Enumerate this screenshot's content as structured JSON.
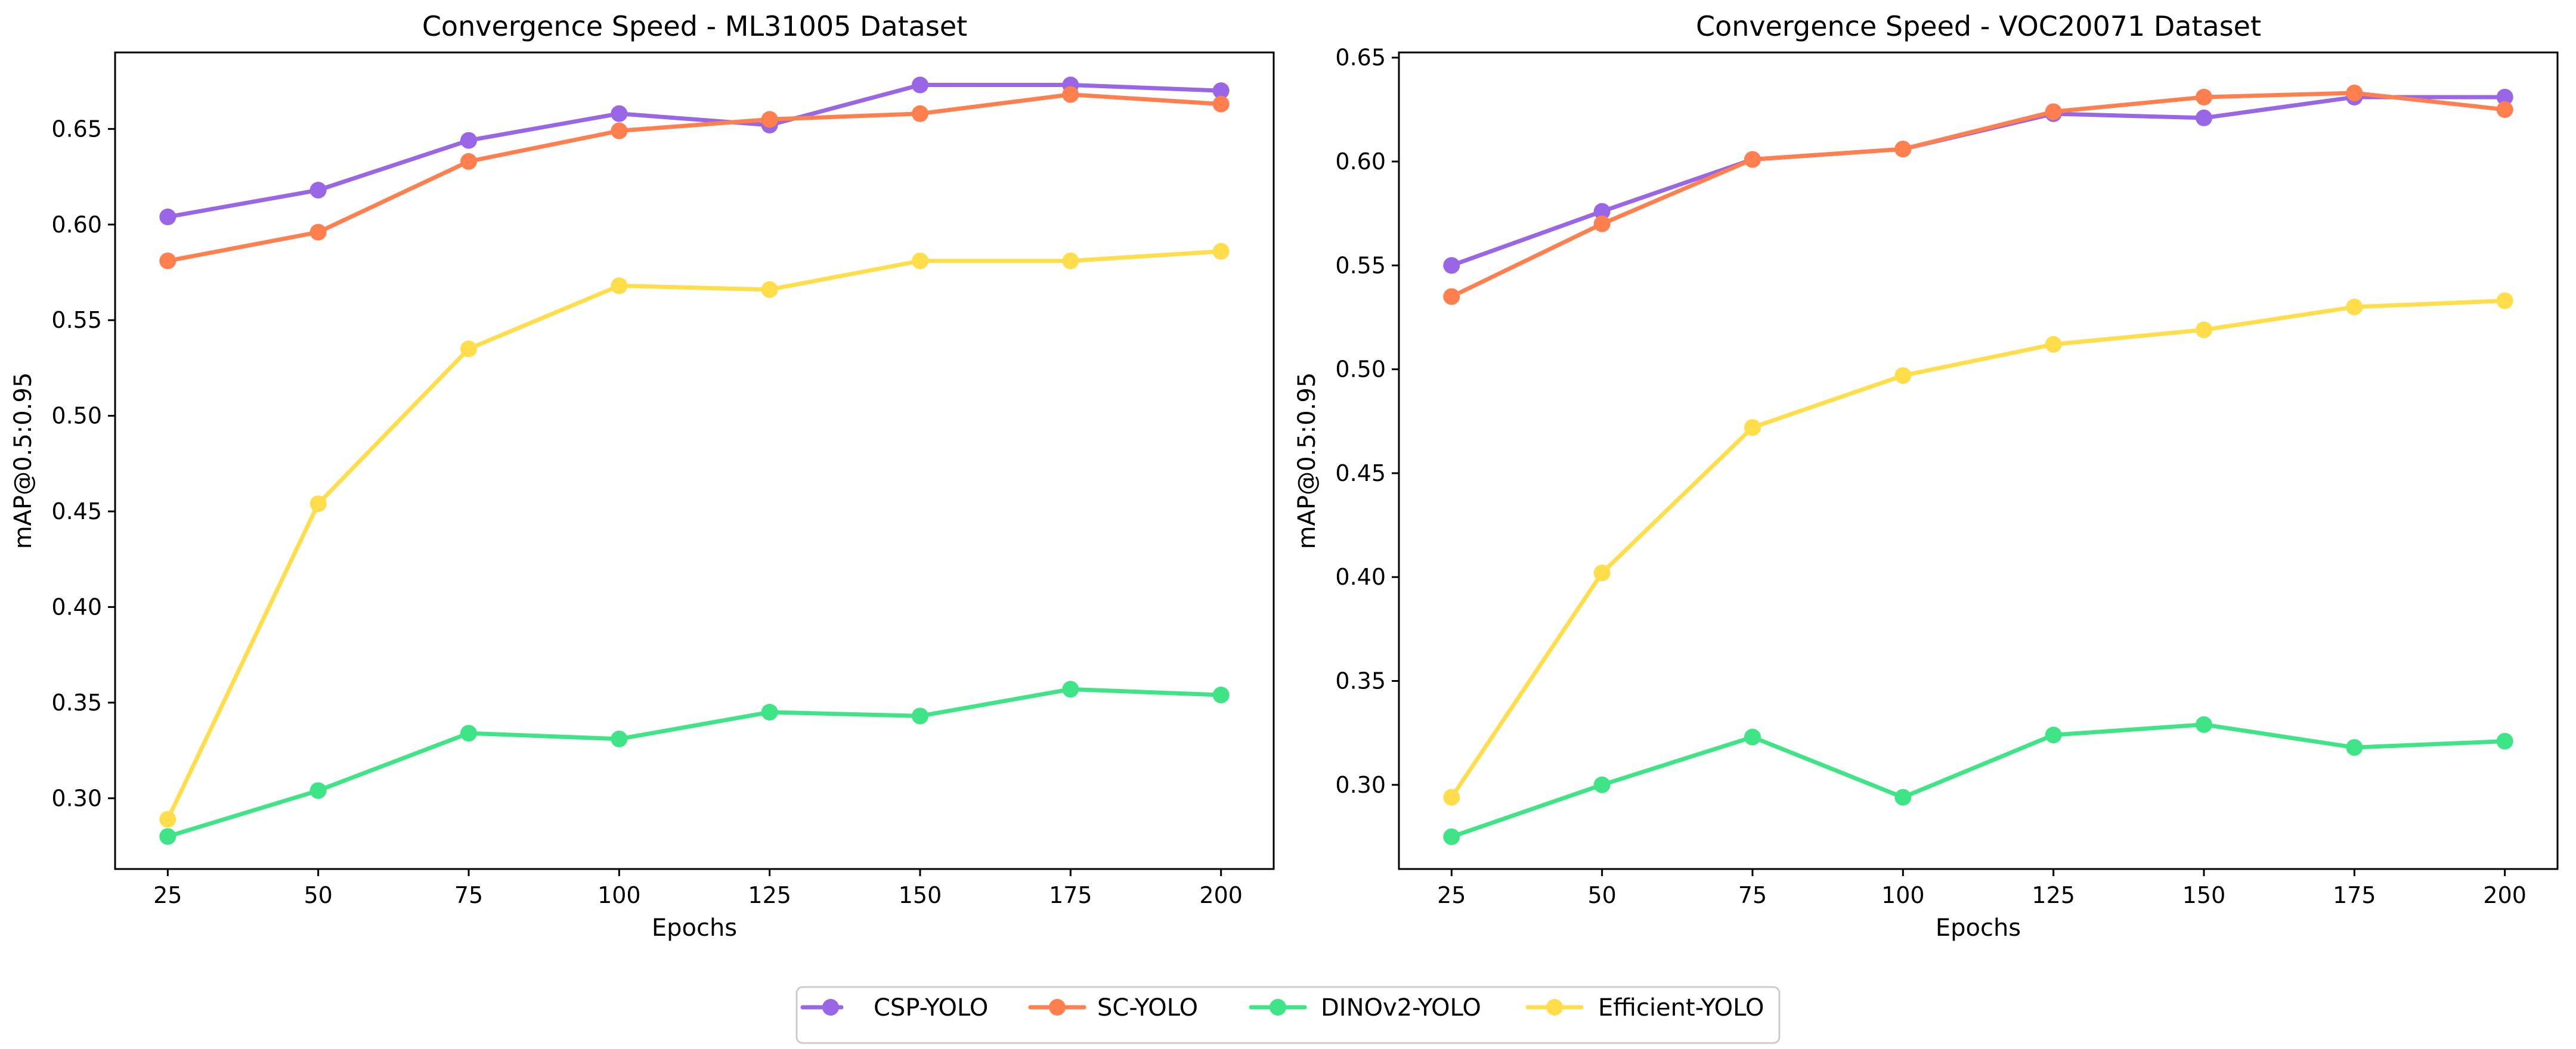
{
  "figure": {
    "legend_entries": [
      "CSP-YOLO",
      "SC-YOLO",
      "DINOv2-YOLO",
      "Efficient-YOLO"
    ]
  },
  "chart_data": [
    {
      "type": "line",
      "title": "Convergence Speed - ML31005 Dataset",
      "xlabel": "Epochs",
      "ylabel": "mAP@0.5:0.95",
      "x": [
        25,
        50,
        75,
        100,
        125,
        150,
        175,
        200
      ],
      "xlim": [
        16.25,
        208.75
      ],
      "ylim": [
        0.263,
        0.69
      ],
      "xticks": [
        "25",
        "50",
        "75",
        "100",
        "125",
        "150",
        "175",
        "200"
      ],
      "xtick_values": [
        25,
        50,
        75,
        100,
        125,
        150,
        175,
        200
      ],
      "yticks": [
        "0.30",
        "0.35",
        "0.40",
        "0.45",
        "0.50",
        "0.55",
        "0.60",
        "0.65"
      ],
      "ytick_values": [
        0.3,
        0.35,
        0.4,
        0.45,
        0.5,
        0.55,
        0.6,
        0.65
      ],
      "grid": false,
      "series": [
        {
          "name": "CSP-YOLO",
          "color": "#9966e6",
          "values": [
            0.604,
            0.618,
            0.644,
            0.658,
            0.652,
            0.673,
            0.673,
            0.67
          ]
        },
        {
          "name": "SC-YOLO",
          "color": "#ff7f4f",
          "values": [
            0.581,
            0.596,
            0.633,
            0.649,
            0.655,
            0.658,
            0.668,
            0.663
          ]
        },
        {
          "name": "DINOv2-YOLO",
          "color": "#3ee486",
          "values": [
            0.28,
            0.304,
            0.334,
            0.331,
            0.345,
            0.343,
            0.357,
            0.354
          ]
        },
        {
          "name": "Efficient-YOLO",
          "color": "#ffdd4b",
          "values": [
            0.289,
            0.454,
            0.535,
            0.568,
            0.566,
            0.581,
            0.581,
            0.586
          ]
        }
      ]
    },
    {
      "type": "line",
      "title": "Convergence Speed - VOC20071 Dataset",
      "xlabel": "Epochs",
      "ylabel": "mAP@0.5:0.95",
      "x": [
        25,
        50,
        75,
        100,
        125,
        150,
        175,
        200
      ],
      "xlim": [
        16.25,
        208.75
      ],
      "ylim": [
        0.2595,
        0.6525
      ],
      "xticks": [
        "25",
        "50",
        "75",
        "100",
        "125",
        "150",
        "175",
        "200"
      ],
      "xtick_values": [
        25,
        50,
        75,
        100,
        125,
        150,
        175,
        200
      ],
      "yticks": [
        "0.30",
        "0.35",
        "0.40",
        "0.45",
        "0.50",
        "0.55",
        "0.60",
        "0.65"
      ],
      "ytick_values": [
        0.3,
        0.35,
        0.4,
        0.45,
        0.5,
        0.55,
        0.6,
        0.65
      ],
      "grid": false,
      "series": [
        {
          "name": "CSP-YOLO",
          "color": "#9966e6",
          "values": [
            0.55,
            0.576,
            0.601,
            0.606,
            0.623,
            0.621,
            0.631,
            0.631
          ]
        },
        {
          "name": "SC-YOLO",
          "color": "#ff7f4f",
          "values": [
            0.535,
            0.57,
            0.601,
            0.606,
            0.624,
            0.631,
            0.633,
            0.625
          ]
        },
        {
          "name": "DINOv2-YOLO",
          "color": "#3ee486",
          "values": [
            0.275,
            0.3,
            0.323,
            0.294,
            0.324,
            0.329,
            0.318,
            0.321
          ]
        },
        {
          "name": "Efficient-YOLO",
          "color": "#ffdd4b",
          "values": [
            0.294,
            0.402,
            0.472,
            0.497,
            0.512,
            0.519,
            0.53,
            0.533
          ]
        }
      ]
    }
  ]
}
